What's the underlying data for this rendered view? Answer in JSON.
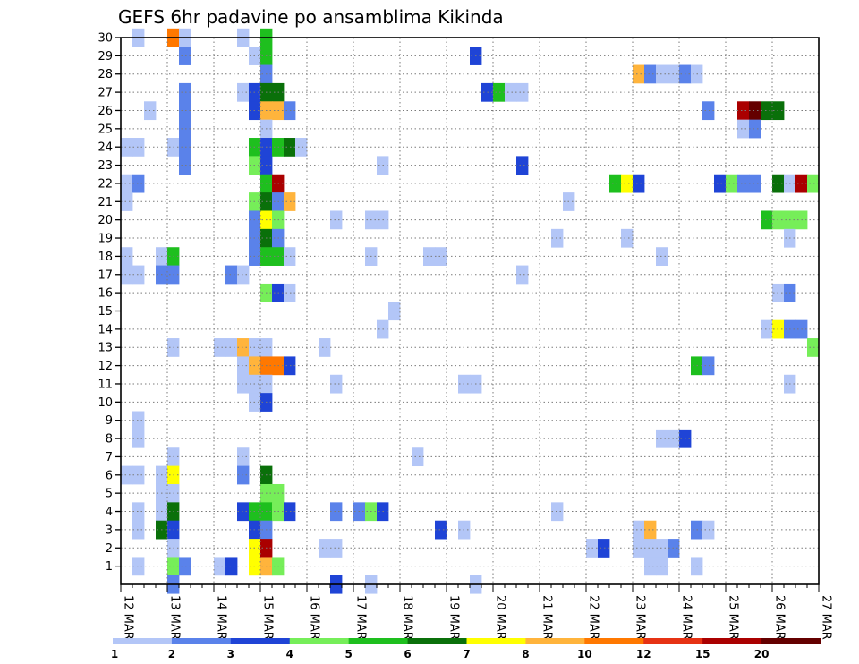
{
  "chart_data": {
    "type": "heatmap",
    "title": "GEFS 6hr padavine po ansamblima Kikinda",
    "xlabel": "",
    "ylabel": "",
    "x_tick_labels": [
      "12 MAR",
      "13 MAR",
      "14 MAR",
      "15 MAR",
      "16 MAR",
      "17 MAR",
      "18 MAR",
      "19 MAR",
      "20 MAR",
      "21 MAR",
      "22 MAR",
      "23 MAR",
      "24 MAR",
      "25 MAR",
      "26 MAR",
      "27 MAR"
    ],
    "xlim": [
      0,
      60
    ],
    "y_ticks": [
      1,
      2,
      3,
      4,
      5,
      6,
      7,
      8,
      9,
      10,
      11,
      12,
      13,
      14,
      15,
      16,
      17,
      18,
      19,
      20,
      21,
      22,
      23,
      24,
      25,
      26,
      27,
      28,
      29,
      30
    ],
    "ylim": [
      0,
      30
    ],
    "time_step": "6hr",
    "grid": true,
    "legend_position": "bottom",
    "color_scale": {
      "labels": [
        "1",
        "2",
        "3",
        "4",
        "5",
        "6",
        "7",
        "8",
        "10",
        "12",
        "15",
        "20",
        ""
      ],
      "colors": [
        "#b3c6f7",
        "#5a82ea",
        "#1f44d6",
        "#76ee59",
        "#1ebf1e",
        "#0a700a",
        "#ffff00",
        "#ffb43c",
        "#ff7800",
        "#e63214",
        "#aa0000",
        "#640000"
      ]
    },
    "cells": [
      [
        1,
        30,
        1
      ],
      [
        4,
        30,
        9
      ],
      [
        5,
        30,
        1
      ],
      [
        10,
        30,
        1
      ],
      [
        12,
        30,
        5
      ],
      [
        5,
        29,
        2
      ],
      [
        11,
        29,
        1
      ],
      [
        12,
        29,
        5
      ],
      [
        30,
        29,
        3
      ],
      [
        12,
        28,
        2
      ],
      [
        44,
        28,
        8
      ],
      [
        45,
        28,
        2
      ],
      [
        46,
        28,
        1
      ],
      [
        47,
        28,
        1
      ],
      [
        48,
        28,
        2
      ],
      [
        49,
        28,
        1
      ],
      [
        5,
        27,
        2
      ],
      [
        10,
        27,
        1
      ],
      [
        11,
        27,
        3
      ],
      [
        12,
        27,
        6
      ],
      [
        13,
        27,
        6
      ],
      [
        31,
        27,
        3
      ],
      [
        32,
        27,
        5
      ],
      [
        33,
        27,
        1
      ],
      [
        34,
        27,
        1
      ],
      [
        2,
        26,
        1
      ],
      [
        5,
        26,
        2
      ],
      [
        11,
        26,
        3
      ],
      [
        12,
        26,
        8
      ],
      [
        13,
        26,
        8
      ],
      [
        14,
        26,
        2
      ],
      [
        50,
        26,
        2
      ],
      [
        53,
        26,
        11
      ],
      [
        54,
        26,
        12
      ],
      [
        55,
        26,
        6
      ],
      [
        56,
        26,
        6
      ],
      [
        5,
        25,
        2
      ],
      [
        12,
        25,
        1
      ],
      [
        53,
        25,
        1
      ],
      [
        54,
        25,
        2
      ],
      [
        0,
        24,
        1
      ],
      [
        1,
        24,
        1
      ],
      [
        4,
        24,
        1
      ],
      [
        5,
        24,
        2
      ],
      [
        11,
        24,
        5
      ],
      [
        12,
        24,
        3
      ],
      [
        13,
        24,
        5
      ],
      [
        14,
        24,
        6
      ],
      [
        15,
        24,
        1
      ],
      [
        5,
        23,
        2
      ],
      [
        11,
        23,
        4
      ],
      [
        12,
        23,
        3
      ],
      [
        22,
        23,
        1
      ],
      [
        34,
        23,
        3
      ],
      [
        0,
        22,
        1
      ],
      [
        1,
        22,
        2
      ],
      [
        12,
        22,
        5
      ],
      [
        13,
        22,
        11
      ],
      [
        42,
        22,
        5
      ],
      [
        43,
        22,
        7
      ],
      [
        44,
        22,
        3
      ],
      [
        51,
        22,
        3
      ],
      [
        52,
        22,
        4
      ],
      [
        53,
        22,
        2
      ],
      [
        54,
        22,
        2
      ],
      [
        56,
        22,
        6
      ],
      [
        57,
        22,
        1
      ],
      [
        58,
        22,
        11
      ],
      [
        59,
        22,
        4
      ],
      [
        0,
        21,
        1
      ],
      [
        11,
        21,
        4
      ],
      [
        12,
        21,
        6
      ],
      [
        13,
        21,
        2
      ],
      [
        14,
        21,
        8
      ],
      [
        38,
        21,
        1
      ],
      [
        11,
        20,
        2
      ],
      [
        12,
        20,
        7
      ],
      [
        13,
        20,
        4
      ],
      [
        18,
        20,
        1
      ],
      [
        21,
        20,
        1
      ],
      [
        22,
        20,
        1
      ],
      [
        55,
        20,
        5
      ],
      [
        56,
        20,
        4
      ],
      [
        57,
        20,
        4
      ],
      [
        58,
        20,
        4
      ],
      [
        11,
        19,
        2
      ],
      [
        12,
        19,
        6
      ],
      [
        13,
        19,
        2
      ],
      [
        37,
        19,
        1
      ],
      [
        43,
        19,
        1
      ],
      [
        57,
        19,
        1
      ],
      [
        0,
        18,
        1
      ],
      [
        3,
        18,
        1
      ],
      [
        4,
        18,
        5
      ],
      [
        11,
        18,
        2
      ],
      [
        12,
        18,
        5
      ],
      [
        13,
        18,
        5
      ],
      [
        14,
        18,
        1
      ],
      [
        21,
        18,
        1
      ],
      [
        26,
        18,
        1
      ],
      [
        27,
        18,
        1
      ],
      [
        46,
        18,
        1
      ],
      [
        0,
        17,
        1
      ],
      [
        1,
        17,
        1
      ],
      [
        3,
        17,
        2
      ],
      [
        4,
        17,
        2
      ],
      [
        9,
        17,
        2
      ],
      [
        10,
        17,
        1
      ],
      [
        34,
        17,
        1
      ],
      [
        12,
        16,
        4
      ],
      [
        13,
        16,
        3
      ],
      [
        14,
        16,
        1
      ],
      [
        56,
        16,
        1
      ],
      [
        57,
        16,
        2
      ],
      [
        23,
        15,
        1
      ],
      [
        22,
        14,
        1
      ],
      [
        55,
        14,
        1
      ],
      [
        56,
        14,
        7
      ],
      [
        57,
        14,
        2
      ],
      [
        58,
        14,
        2
      ],
      [
        4,
        13,
        1
      ],
      [
        8,
        13,
        1
      ],
      [
        9,
        13,
        1
      ],
      [
        10,
        13,
        8
      ],
      [
        11,
        13,
        1
      ],
      [
        12,
        13,
        1
      ],
      [
        17,
        13,
        1
      ],
      [
        59,
        13,
        4
      ],
      [
        10,
        12,
        1
      ],
      [
        11,
        12,
        8
      ],
      [
        12,
        12,
        9
      ],
      [
        13,
        12,
        9
      ],
      [
        14,
        12,
        3
      ],
      [
        49,
        12,
        5
      ],
      [
        50,
        12,
        2
      ],
      [
        10,
        11,
        1
      ],
      [
        11,
        11,
        1
      ],
      [
        12,
        11,
        1
      ],
      [
        18,
        11,
        1
      ],
      [
        29,
        11,
        1
      ],
      [
        30,
        11,
        1
      ],
      [
        57,
        11,
        1
      ],
      [
        11,
        10,
        1
      ],
      [
        12,
        10,
        3
      ],
      [
        1,
        9,
        1
      ],
      [
        1,
        8,
        1
      ],
      [
        46,
        8,
        1
      ],
      [
        47,
        8,
        1
      ],
      [
        48,
        8,
        3
      ],
      [
        4,
        7,
        1
      ],
      [
        10,
        7,
        1
      ],
      [
        25,
        7,
        1
      ],
      [
        0,
        6,
        1
      ],
      [
        1,
        6,
        1
      ],
      [
        3,
        6,
        1
      ],
      [
        4,
        6,
        7
      ],
      [
        10,
        6,
        2
      ],
      [
        12,
        6,
        6
      ],
      [
        3,
        5,
        1
      ],
      [
        4,
        5,
        1
      ],
      [
        12,
        5,
        4
      ],
      [
        13,
        5,
        4
      ],
      [
        1,
        4,
        1
      ],
      [
        3,
        4,
        1
      ],
      [
        4,
        4,
        6
      ],
      [
        10,
        4,
        3
      ],
      [
        11,
        4,
        5
      ],
      [
        12,
        4,
        5
      ],
      [
        13,
        4,
        4
      ],
      [
        14,
        4,
        3
      ],
      [
        18,
        4,
        2
      ],
      [
        20,
        4,
        2
      ],
      [
        21,
        4,
        4
      ],
      [
        22,
        4,
        3
      ],
      [
        37,
        4,
        1
      ],
      [
        1,
        3,
        1
      ],
      [
        3,
        3,
        6
      ],
      [
        4,
        3,
        3
      ],
      [
        11,
        3,
        3
      ],
      [
        12,
        3,
        2
      ],
      [
        27,
        3,
        3
      ],
      [
        29,
        3,
        1
      ],
      [
        44,
        3,
        1
      ],
      [
        45,
        3,
        8
      ],
      [
        49,
        3,
        2
      ],
      [
        50,
        3,
        1
      ],
      [
        4,
        2,
        1
      ],
      [
        11,
        2,
        7
      ],
      [
        12,
        2,
        11
      ],
      [
        17,
        2,
        1
      ],
      [
        18,
        2,
        1
      ],
      [
        40,
        2,
        1
      ],
      [
        41,
        2,
        3
      ],
      [
        44,
        2,
        1
      ],
      [
        45,
        2,
        1
      ],
      [
        46,
        2,
        1
      ],
      [
        47,
        2,
        2
      ],
      [
        1,
        1,
        1
      ],
      [
        4,
        1,
        4
      ],
      [
        5,
        1,
        2
      ],
      [
        8,
        1,
        1
      ],
      [
        9,
        1,
        3
      ],
      [
        11,
        1,
        7
      ],
      [
        12,
        1,
        8
      ],
      [
        13,
        1,
        4
      ],
      [
        45,
        1,
        1
      ],
      [
        46,
        1,
        1
      ],
      [
        49,
        1,
        1
      ],
      [
        4,
        0,
        2
      ],
      [
        18,
        0,
        3
      ],
      [
        21,
        0,
        1
      ],
      [
        30,
        0,
        1
      ]
    ]
  }
}
